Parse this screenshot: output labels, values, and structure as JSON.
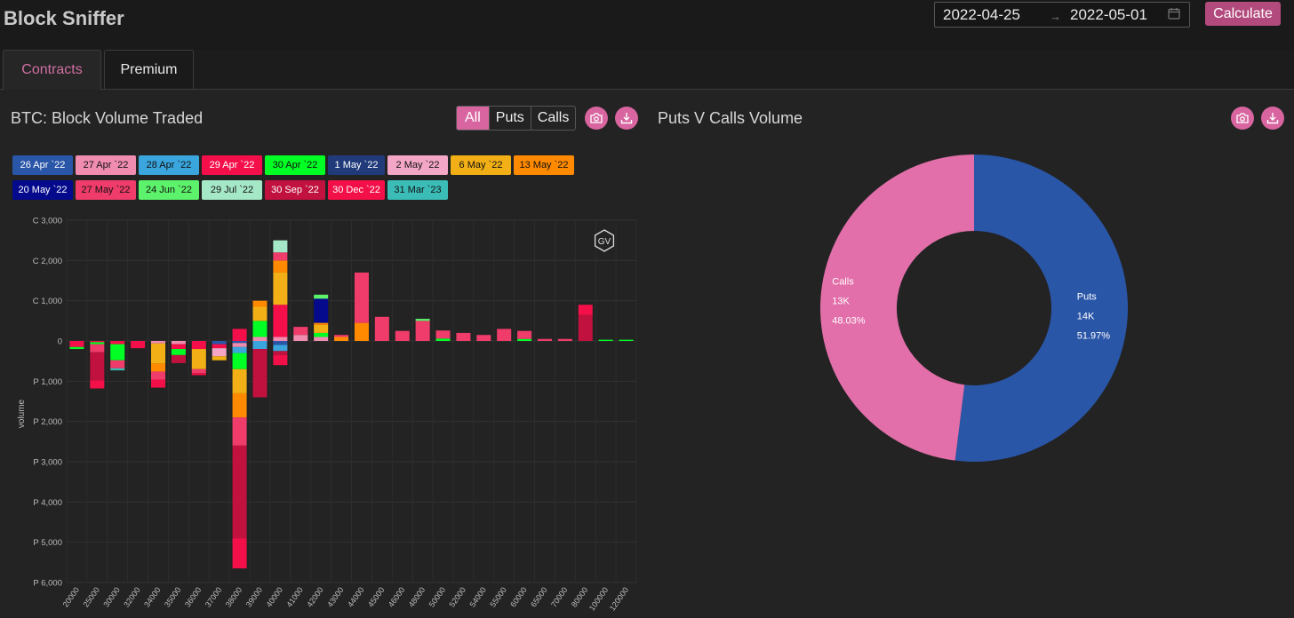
{
  "app": {
    "title": "Block Sniffer"
  },
  "daterange": {
    "start": "2022-04-25",
    "separator": "→",
    "end": "2022-05-01",
    "calendar_icon": "calendar-icon"
  },
  "toolbar": {
    "calculate_label": "Calculate"
  },
  "tabs": [
    {
      "label": "Contracts",
      "active": true
    },
    {
      "label": "Premium",
      "active": false
    }
  ],
  "bar_panel": {
    "title": "BTC: Block Volume Traded",
    "filter": [
      {
        "label": "All",
        "active": true
      },
      {
        "label": "Puts"
      },
      {
        "label": "Calls"
      }
    ],
    "camera_icon": "camera-icon",
    "download_icon": "download-icon",
    "watermark": "GV"
  },
  "pie_panel": {
    "title": "Puts V Calls Volume",
    "camera_icon": "camera-icon",
    "download_icon": "download-icon"
  },
  "colors": {
    "accent": "#d8659f",
    "series": [
      "#2a56a8",
      "#f08cb0",
      "#3aa6dd",
      "#f50f4a",
      "#00ff24",
      "#203a7a",
      "#f3a6c6",
      "#f2b016",
      "#ff8a00",
      "#050a8c",
      "#ef3c6a",
      "#5df26b",
      "#a5e8c8",
      "#c0113f",
      "#f30f48",
      "#3bbcb7"
    ]
  },
  "chart_data": [
    {
      "type": "bar",
      "title": "BTC: Block Volume Traded",
      "xlabel": "",
      "ylabel": "volume",
      "stacked": true,
      "ylim": [
        -6000,
        3000
      ],
      "yticks": [
        {
          "value": 3000,
          "label": "C 3,000"
        },
        {
          "value": 2000,
          "label": "C 2,000"
        },
        {
          "value": 1000,
          "label": "C 1,000"
        },
        {
          "value": 0,
          "label": "0"
        },
        {
          "value": -1000,
          "label": "P 1,000"
        },
        {
          "value": -2000,
          "label": "P 2,000"
        },
        {
          "value": -3000,
          "label": "P 3,000"
        },
        {
          "value": -4000,
          "label": "P 4,000"
        },
        {
          "value": -5000,
          "label": "P 5,000"
        },
        {
          "value": -6000,
          "label": "P 6,000"
        }
      ],
      "categories": [
        "20000",
        "25000",
        "30000",
        "32000",
        "34000",
        "35000",
        "36000",
        "37000",
        "38000",
        "39000",
        "40000",
        "41000",
        "42000",
        "43000",
        "44000",
        "45000",
        "46000",
        "48000",
        "50000",
        "52000",
        "54000",
        "55000",
        "60000",
        "65000",
        "70000",
        "80000",
        "100000",
        "120000"
      ],
      "grid": true,
      "legend_position": "top",
      "series": [
        {
          "name": "26 Apr `22",
          "values": [
            0,
            0,
            0,
            0,
            0,
            0,
            0,
            -80,
            -50,
            0,
            -100,
            0,
            0,
            0,
            0,
            0,
            0,
            0,
            0,
            0,
            0,
            0,
            0,
            0,
            0,
            0,
            0,
            0
          ]
        },
        {
          "name": "27 Apr `22",
          "values": [
            0,
            0,
            0,
            0,
            -60,
            -80,
            0,
            0,
            -100,
            100,
            100,
            150,
            100,
            0,
            0,
            0,
            0,
            0,
            0,
            0,
            0,
            0,
            0,
            0,
            0,
            0,
            0,
            0
          ]
        },
        {
          "name": "28 Apr `22",
          "values": [
            0,
            0,
            0,
            0,
            0,
            0,
            0,
            0,
            -150,
            -200,
            -150,
            0,
            0,
            0,
            0,
            0,
            0,
            0,
            0,
            0,
            0,
            0,
            0,
            0,
            0,
            0,
            0,
            0
          ]
        },
        {
          "name": "29 Apr `22",
          "values": [
            -150,
            -30,
            -80,
            -180,
            0,
            -120,
            -200,
            -100,
            300,
            0,
            800,
            0,
            0,
            0,
            0,
            0,
            0,
            0,
            0,
            0,
            0,
            0,
            0,
            0,
            0,
            0,
            0,
            0
          ]
        },
        {
          "name": "30 Apr `22",
          "values": [
            -50,
            -50,
            -400,
            0,
            0,
            -150,
            0,
            0,
            -400,
            400,
            0,
            0,
            100,
            0,
            0,
            0,
            0,
            0,
            60,
            0,
            0,
            0,
            50,
            0,
            0,
            0,
            30,
            30
          ]
        },
        {
          "name": "1 May `22",
          "values": [
            0,
            0,
            0,
            0,
            0,
            0,
            0,
            0,
            0,
            0,
            0,
            0,
            0,
            0,
            0,
            0,
            0,
            0,
            0,
            0,
            0,
            0,
            0,
            0,
            0,
            0,
            0,
            0
          ]
        },
        {
          "name": "2 May `22",
          "values": [
            0,
            0,
            0,
            0,
            0,
            0,
            0,
            -200,
            0,
            0,
            0,
            0,
            0,
            0,
            0,
            0,
            0,
            0,
            0,
            0,
            0,
            0,
            0,
            0,
            0,
            0,
            0,
            0
          ]
        },
        {
          "name": "6 May `22",
          "values": [
            0,
            0,
            0,
            0,
            -500,
            0,
            -500,
            -100,
            -600,
            350,
            800,
            0,
            200,
            0,
            0,
            0,
            0,
            0,
            0,
            0,
            0,
            0,
            0,
            0,
            0,
            0,
            0,
            0
          ]
        },
        {
          "name": "13 May `22",
          "values": [
            0,
            0,
            0,
            0,
            -200,
            0,
            0,
            0,
            -600,
            150,
            300,
            0,
            50,
            100,
            450,
            0,
            0,
            0,
            0,
            0,
            0,
            0,
            0,
            0,
            0,
            0,
            0,
            0
          ]
        },
        {
          "name": "20 May `22",
          "values": [
            0,
            0,
            0,
            0,
            0,
            0,
            0,
            0,
            0,
            0,
            0,
            0,
            600,
            0,
            0,
            0,
            0,
            0,
            0,
            0,
            0,
            0,
            0,
            0,
            0,
            0,
            0,
            0
          ]
        },
        {
          "name": "27 May `22",
          "values": [
            0,
            -200,
            -200,
            0,
            -200,
            0,
            -100,
            0,
            -700,
            0,
            200,
            200,
            0,
            50,
            1250,
            600,
            250,
            500,
            200,
            200,
            150,
            300,
            200,
            50,
            50,
            0,
            0,
            0
          ]
        },
        {
          "name": "24 Jun `22",
          "values": [
            0,
            0,
            0,
            0,
            0,
            0,
            0,
            0,
            0,
            0,
            0,
            0,
            100,
            0,
            0,
            0,
            0,
            50,
            0,
            0,
            0,
            0,
            0,
            0,
            0,
            0,
            0,
            0
          ]
        },
        {
          "name": "29 Jul `22",
          "values": [
            0,
            0,
            0,
            0,
            0,
            0,
            0,
            0,
            0,
            0,
            300,
            0,
            0,
            0,
            0,
            0,
            0,
            0,
            0,
            0,
            0,
            0,
            0,
            0,
            0,
            0,
            0,
            0
          ]
        },
        {
          "name": "30 Sep `22",
          "values": [
            0,
            -700,
            0,
            0,
            0,
            -200,
            0,
            0,
            -2300,
            -1200,
            -100,
            0,
            0,
            0,
            0,
            0,
            0,
            0,
            0,
            0,
            0,
            0,
            0,
            0,
            0,
            650,
            0,
            0
          ]
        },
        {
          "name": "30 Dec `22",
          "values": [
            0,
            -200,
            0,
            0,
            -200,
            0,
            -50,
            0,
            -750,
            0,
            -250,
            0,
            0,
            0,
            0,
            0,
            0,
            0,
            0,
            0,
            0,
            0,
            0,
            0,
            0,
            250,
            0,
            0
          ]
        },
        {
          "name": "31 Mar `23",
          "values": [
            0,
            0,
            -50,
            0,
            0,
            0,
            0,
            0,
            0,
            0,
            0,
            0,
            0,
            0,
            0,
            0,
            0,
            0,
            0,
            0,
            0,
            0,
            0,
            0,
            0,
            0,
            0,
            0
          ]
        }
      ]
    },
    {
      "type": "pie",
      "title": "Puts V Calls Volume",
      "donut": true,
      "slices": [
        {
          "name": "Puts",
          "label": "14K",
          "percent_label": "51.97%",
          "value": 51.97,
          "color": "#2a56a8"
        },
        {
          "name": "Calls",
          "label": "13K",
          "percent_label": "48.03%",
          "value": 48.03,
          "color": "#e26fa9"
        }
      ]
    }
  ]
}
